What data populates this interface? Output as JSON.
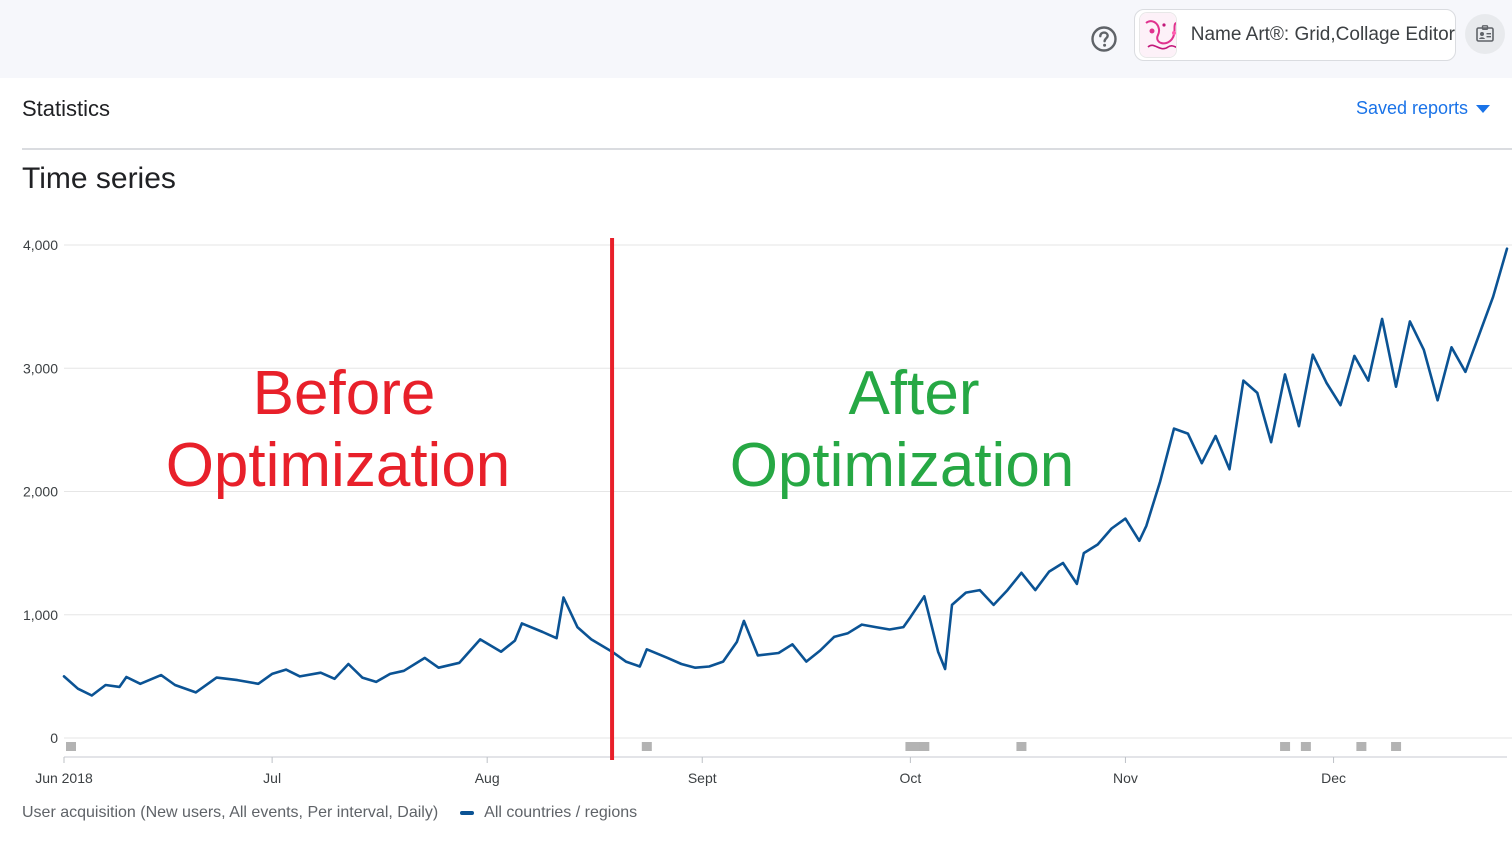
{
  "header": {
    "app_name": "Name Art®: Grid,Collage Editor",
    "help_icon": "help-circle-icon",
    "account_icon": "account-badge-icon"
  },
  "page": {
    "title": "Statistics",
    "saved_reports_label": "Saved reports"
  },
  "section": {
    "title": "Time series"
  },
  "legend": {
    "metric_label": "User acquisition (New users, All events, Per interval, Daily)",
    "series_label": "All countries / regions"
  },
  "annotations": {
    "before_line1": "Before",
    "before_line2": "Optimization",
    "after_line1": "After",
    "after_line2": "Optimization",
    "before_color": "#e8202a",
    "after_color": "#26a844"
  },
  "colors": {
    "series": "#0b5394",
    "accent": "#1a73e8",
    "divider_line": "#e8202a"
  },
  "chart_data": {
    "type": "line",
    "title": "",
    "xlabel": "",
    "ylabel": "",
    "ylim": [
      0,
      4000
    ],
    "y_ticks": [
      "0",
      "1,000",
      "2,000",
      "3,000",
      "4,000"
    ],
    "x_tick_labels": [
      "Jun 2018",
      "Jul",
      "Aug",
      "Sept",
      "Oct",
      "Nov",
      "Dec"
    ],
    "x_tick_dates": [
      "2018-06-01",
      "2018-07-01",
      "2018-08-01",
      "2018-09-01",
      "2018-10-01",
      "2018-11-01",
      "2018-12-01"
    ],
    "grid": true,
    "vertical_marker_date": "2018-08-19",
    "series": [
      {
        "name": "All countries / regions",
        "points": [
          [
            "2018-06-01",
            500
          ],
          [
            "2018-06-03",
            400
          ],
          [
            "2018-06-05",
            345
          ],
          [
            "2018-06-07",
            430
          ],
          [
            "2018-06-09",
            415
          ],
          [
            "2018-06-10",
            495
          ],
          [
            "2018-06-12",
            440
          ],
          [
            "2018-06-15",
            510
          ],
          [
            "2018-06-17",
            430
          ],
          [
            "2018-06-20",
            370
          ],
          [
            "2018-06-23",
            490
          ],
          [
            "2018-06-26",
            470
          ],
          [
            "2018-06-29",
            440
          ],
          [
            "2018-07-01",
            520
          ],
          [
            "2018-07-03",
            555
          ],
          [
            "2018-07-05",
            500
          ],
          [
            "2018-07-08",
            530
          ],
          [
            "2018-07-10",
            480
          ],
          [
            "2018-07-12",
            600
          ],
          [
            "2018-07-14",
            490
          ],
          [
            "2018-07-16",
            455
          ],
          [
            "2018-07-18",
            520
          ],
          [
            "2018-07-20",
            545
          ],
          [
            "2018-07-23",
            650
          ],
          [
            "2018-07-25",
            570
          ],
          [
            "2018-07-28",
            610
          ],
          [
            "2018-07-31",
            800
          ],
          [
            "2018-08-03",
            700
          ],
          [
            "2018-08-05",
            790
          ],
          [
            "2018-08-06",
            930
          ],
          [
            "2018-08-09",
            860
          ],
          [
            "2018-08-11",
            810
          ],
          [
            "2018-08-12",
            1140
          ],
          [
            "2018-08-14",
            900
          ],
          [
            "2018-08-16",
            800
          ],
          [
            "2018-08-19",
            700
          ],
          [
            "2018-08-21",
            620
          ],
          [
            "2018-08-23",
            580
          ],
          [
            "2018-08-24",
            720
          ],
          [
            "2018-08-27",
            650
          ],
          [
            "2018-08-29",
            600
          ],
          [
            "2018-08-31",
            570
          ],
          [
            "2018-09-02",
            580
          ],
          [
            "2018-09-04",
            620
          ],
          [
            "2018-09-06",
            780
          ],
          [
            "2018-09-07",
            950
          ],
          [
            "2018-09-09",
            670
          ],
          [
            "2018-09-12",
            690
          ],
          [
            "2018-09-14",
            760
          ],
          [
            "2018-09-16",
            620
          ],
          [
            "2018-09-18",
            710
          ],
          [
            "2018-09-20",
            820
          ],
          [
            "2018-09-22",
            850
          ],
          [
            "2018-09-24",
            920
          ],
          [
            "2018-09-26",
            900
          ],
          [
            "2018-09-28",
            880
          ],
          [
            "2018-09-30",
            900
          ],
          [
            "2018-10-01",
            980
          ],
          [
            "2018-10-03",
            1150
          ],
          [
            "2018-10-05",
            700
          ],
          [
            "2018-10-06",
            560
          ],
          [
            "2018-10-07",
            1080
          ],
          [
            "2018-10-09",
            1180
          ],
          [
            "2018-10-11",
            1200
          ],
          [
            "2018-10-13",
            1080
          ],
          [
            "2018-10-15",
            1200
          ],
          [
            "2018-10-17",
            1340
          ],
          [
            "2018-10-19",
            1200
          ],
          [
            "2018-10-21",
            1350
          ],
          [
            "2018-10-23",
            1420
          ],
          [
            "2018-10-25",
            1250
          ],
          [
            "2018-10-26",
            1500
          ],
          [
            "2018-10-28",
            1570
          ],
          [
            "2018-10-30",
            1700
          ],
          [
            "2018-11-01",
            1780
          ],
          [
            "2018-11-03",
            1600
          ],
          [
            "2018-11-04",
            1720
          ],
          [
            "2018-11-06",
            2080
          ],
          [
            "2018-11-08",
            2510
          ],
          [
            "2018-11-10",
            2470
          ],
          [
            "2018-11-12",
            2230
          ],
          [
            "2018-11-14",
            2450
          ],
          [
            "2018-11-16",
            2180
          ],
          [
            "2018-11-18",
            2900
          ],
          [
            "2018-11-20",
            2800
          ],
          [
            "2018-11-22",
            2400
          ],
          [
            "2018-11-24",
            2950
          ],
          [
            "2018-11-26",
            2530
          ],
          [
            "2018-11-28",
            3110
          ],
          [
            "2018-11-30",
            2880
          ],
          [
            "2018-12-02",
            2700
          ],
          [
            "2018-12-04",
            3100
          ],
          [
            "2018-12-06",
            2900
          ],
          [
            "2018-12-08",
            3400
          ],
          [
            "2018-12-10",
            2850
          ],
          [
            "2018-12-12",
            3380
          ],
          [
            "2018-12-14",
            3150
          ],
          [
            "2018-12-16",
            2740
          ],
          [
            "2018-12-18",
            3170
          ],
          [
            "2018-12-20",
            2970
          ],
          [
            "2018-12-24",
            3580
          ],
          [
            "2018-12-26",
            3970
          ]
        ]
      }
    ]
  }
}
